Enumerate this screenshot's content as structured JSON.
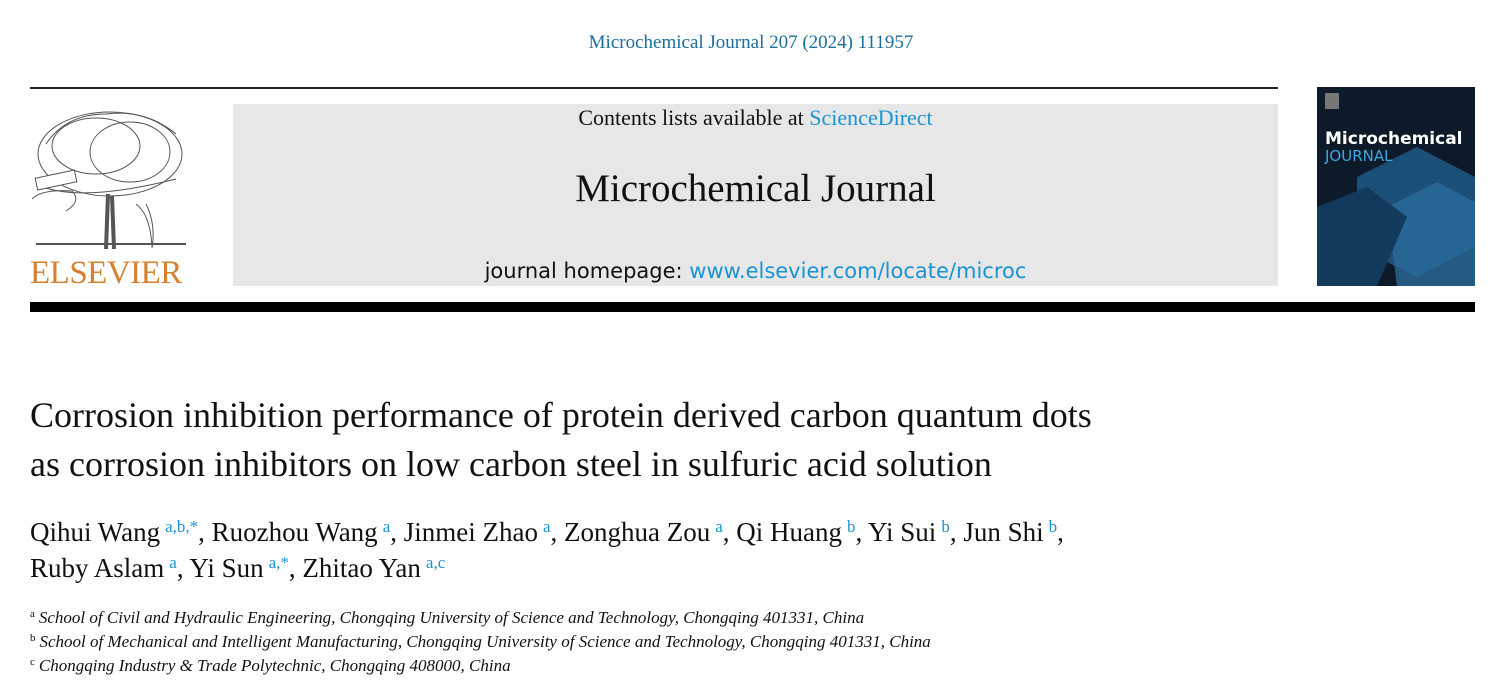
{
  "citation": "Microchemical Journal 207 (2024) 111957",
  "header": {
    "contents_prefix": "Contents lists available at",
    "contents_link": "ScienceDirect",
    "journal": "Microchemical Journal",
    "homepage_prefix": "journal homepage:",
    "homepage_link": "www.elsevier.com/locate/microc"
  },
  "publisher": "ELSEVIER",
  "cover": {
    "title": "Microchemical",
    "subtitle": "JOURNAL"
  },
  "title": {
    "lines": [
      "Corrosion inhibition performance of protein derived carbon quantum dots",
      "as corrosion inhibitors on low carbon steel in sulfuric acid solution"
    ]
  },
  "author_separator": ",",
  "authors": {
    "lines": [
      [
        {
          "name": "Qihui Wang",
          "sup": "a,b,*"
        },
        {
          "name": "Ruozhou Wang",
          "sup": "a"
        },
        {
          "name": "Jinmei Zhao",
          "sup": "a"
        },
        {
          "name": "Zonghua Zou",
          "sup": "a"
        },
        {
          "name": "Qi Huang",
          "sup": "b"
        },
        {
          "name": "Yi Sui",
          "sup": "b"
        },
        {
          "name": "Jun Shi",
          "sup": "b"
        }
      ],
      [
        {
          "name": "Ruby Aslam",
          "sup": "a"
        },
        {
          "name": "Yi Sun",
          "sup": "a,*"
        },
        {
          "name": "Zhitao Yan",
          "sup": "a,c"
        }
      ]
    ]
  },
  "affiliations": [
    {
      "label": "a",
      "text": "School of Civil and Hydraulic Engineering, Chongqing University of Science and Technology, Chongqing 401331, China"
    },
    {
      "label": "b",
      "text": "School of Mechanical and Intelligent Manufacturing, Chongqing University of Science and Technology, Chongqing 401331, China"
    },
    {
      "label": "c",
      "text": "Chongqing Industry & Trade Polytechnic, Chongqing 408000, China"
    }
  ]
}
